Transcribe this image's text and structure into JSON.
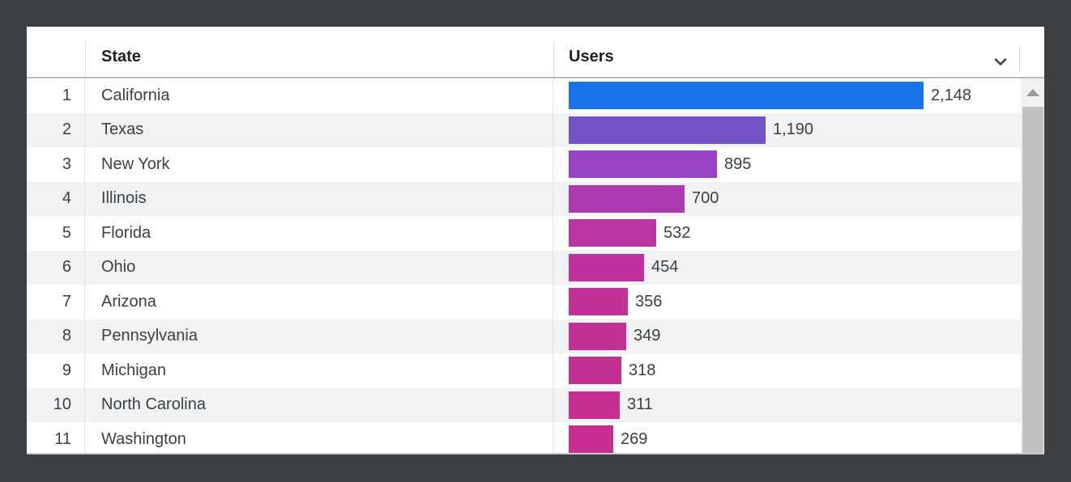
{
  "table": {
    "header": {
      "state_label": "State",
      "users_label": "Users"
    },
    "rows": [
      {
        "rank": "1",
        "state": "California",
        "users": 2148,
        "users_label": "2,148",
        "bar_color": "#1a73e8"
      },
      {
        "rank": "2",
        "state": "Texas",
        "users": 1190,
        "users_label": "1,190",
        "bar_color": "#7253c8"
      },
      {
        "rank": "3",
        "state": "New York",
        "users": 895,
        "users_label": "895",
        "bar_color": "#9a42c4"
      },
      {
        "rank": "4",
        "state": "Illinois",
        "users": 700,
        "users_label": "700",
        "bar_color": "#ab39b0"
      },
      {
        "rank": "5",
        "state": "Florida",
        "users": 532,
        "users_label": "532",
        "bar_color": "#b934a4"
      },
      {
        "rank": "6",
        "state": "Ohio",
        "users": 454,
        "users_label": "454",
        "bar_color": "#bf319d"
      },
      {
        "rank": "7",
        "state": "Arizona",
        "users": 356,
        "users_label": "356",
        "bar_color": "#c23098"
      },
      {
        "rank": "8",
        "state": "Pennsylvania",
        "users": 349,
        "users_label": "349",
        "bar_color": "#c33096"
      },
      {
        "rank": "9",
        "state": "Michigan",
        "users": 318,
        "users_label": "318",
        "bar_color": "#c42f94"
      },
      {
        "rank": "10",
        "state": "North Carolina",
        "users": 311,
        "users_label": "311",
        "bar_color": "#c52f92"
      },
      {
        "rank": "11",
        "state": "Washington",
        "users": 269,
        "users_label": "269",
        "bar_color": "#c62e90"
      }
    ]
  },
  "icons": {
    "sort": "chevron-down-icon",
    "scroll_up": "triangle-up-icon"
  },
  "colors": {
    "frame_background": "#3c4043",
    "card_background": "#ffffff",
    "row_alt_background": "#f1f2f3",
    "column_divider": "#e3e3e3",
    "header_border": "#b7bbbe",
    "header_text": "#202124",
    "body_text": "#3c4043",
    "scrollbar_track": "#f1f1f1",
    "scrollbar_thumb": "#c1c1c1",
    "bar_max_color": "#1a73e8",
    "bar_min_color": "#c62e90"
  },
  "chart_data": {
    "type": "bar",
    "orientation": "horizontal",
    "categories": [
      "California",
      "Texas",
      "New York",
      "Illinois",
      "Florida",
      "Ohio",
      "Arizona",
      "Pennsylvania",
      "Michigan",
      "North Carolina",
      "Washington"
    ],
    "values": [
      2148,
      1190,
      895,
      700,
      532,
      454,
      356,
      349,
      318,
      311,
      269
    ],
    "value_labels": [
      "2,148",
      "1,190",
      "895",
      "700",
      "532",
      "454",
      "356",
      "349",
      "318",
      "311",
      "269"
    ],
    "title": "",
    "xlabel": "Users",
    "ylabel": "State",
    "xlim": [
      0,
      2148
    ],
    "grid": false,
    "legend": false,
    "bar_colors_by_value": true
  }
}
